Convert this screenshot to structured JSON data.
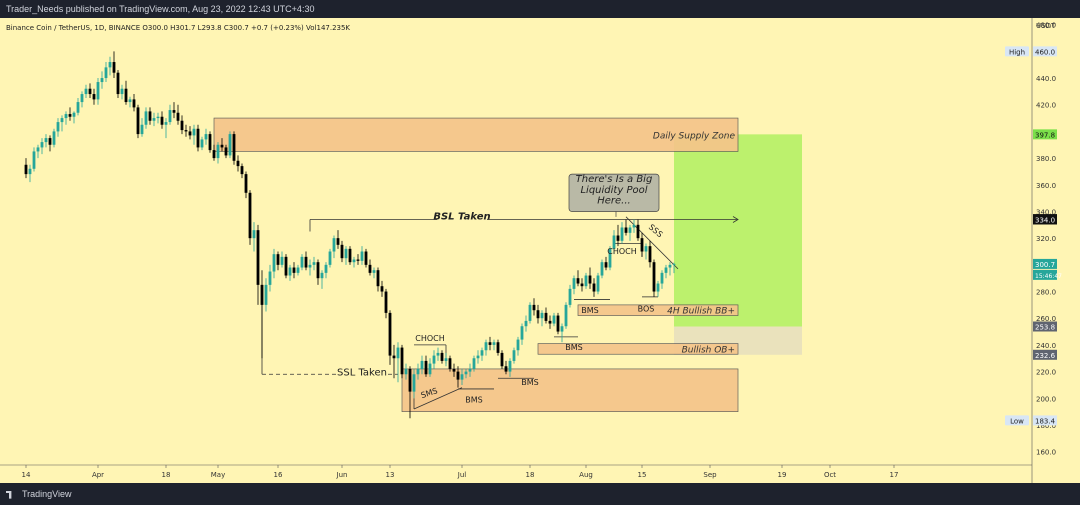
{
  "header": {
    "published_by": "Trader_Needs published on TradingView.com, Aug 23, 2022 12:43 UTC+4:30"
  },
  "footer": {
    "brand": "TradingView"
  },
  "chart_data": {
    "type": "candlestick",
    "symbol_line": "Binance Coin / TetherUS, 1D, BINANCE  O300.0  H301.7  L293.8  C300.7  +0.7 (+0.23%)  Vol147.235K",
    "currency": "USDT",
    "colors": {
      "background": "#fff5b4",
      "up": "#26a69a",
      "down": "#000000",
      "zone": "#f5c58a",
      "target": "#b0f060",
      "stop": "#e8e0bc"
    },
    "y_axis": {
      "ylim": [
        150,
        485
      ],
      "ticks": [
        "480.0",
        "460.0",
        "440.0",
        "420.0",
        "400.0",
        "380.0",
        "360.0",
        "340.0",
        "320.0",
        "300.0",
        "280.0",
        "260.0",
        "240.0",
        "220.0",
        "200.0",
        "180.0",
        "160.0"
      ]
    },
    "x_axis": {
      "ticks": [
        {
          "label": "14",
          "date": "2022-03-14"
        },
        {
          "label": "Apr",
          "date": "2022-04-01"
        },
        {
          "label": "18",
          "date": "2022-04-18"
        },
        {
          "label": "May",
          "date": "2022-05-01"
        },
        {
          "label": "16",
          "date": "2022-05-16"
        },
        {
          "label": "Jun",
          "date": "2022-06-01"
        },
        {
          "label": "13",
          "date": "2022-06-13"
        },
        {
          "label": "Jul",
          "date": "2022-07-01"
        },
        {
          "label": "18",
          "date": "2022-07-18"
        },
        {
          "label": "Aug",
          "date": "2022-08-01"
        },
        {
          "label": "15",
          "date": "2022-08-15"
        },
        {
          "label": "Sep",
          "date": "2022-09-01"
        },
        {
          "label": "19",
          "date": "2022-09-19"
        },
        {
          "label": "Oct",
          "date": "2022-10-01"
        },
        {
          "label": "17",
          "date": "2022-10-17"
        }
      ]
    },
    "price_labels": [
      {
        "text": "High",
        "value": "460.0",
        "price": 460.0,
        "style": "high"
      },
      {
        "text": "",
        "value": "397.8",
        "price": 397.8,
        "style": "green"
      },
      {
        "text": "",
        "value": "334.3",
        "price": 334.3,
        "style": "dark"
      },
      {
        "text": "",
        "value": "334.0",
        "price": 334.0,
        "style": "dark"
      },
      {
        "text": "",
        "value": "300.7",
        "price": 300.7,
        "style": "up"
      },
      {
        "text": "",
        "value": "15:46:47",
        "price": 292.5,
        "style": "up"
      },
      {
        "text": "",
        "value": "253.8",
        "price": 253.8,
        "style": "grey"
      },
      {
        "text": "",
        "value": "232.6",
        "price": 232.6,
        "style": "grey"
      },
      {
        "text": "Low",
        "value": "183.4",
        "price": 183.4,
        "style": "low"
      }
    ],
    "zones": [
      {
        "label": "Daily Supply Zone",
        "from": "2022-04-30",
        "to": "2022-09-08",
        "low": 385,
        "high": 410
      },
      {
        "label": "4H Bullish BB+",
        "from": "2022-07-30",
        "to": "2022-09-08",
        "low": 262,
        "high": 270
      },
      {
        "label": "Bullish OB+",
        "from": "2022-07-20",
        "to": "2022-09-08",
        "low": 233,
        "high": 241
      },
      {
        "label": "",
        "from": "2022-06-16",
        "to": "2022-09-08",
        "low": 190,
        "high": 222
      }
    ],
    "position": {
      "from": "2022-08-23",
      "to": "2022-09-24",
      "entry": 253.8,
      "target": 397.8,
      "stop": 232.6
    },
    "annotations": [
      {
        "text": "BSL Taken",
        "date": "2022-07-01",
        "price": 334
      },
      {
        "text": "SSL Taken",
        "date": "2022-06-06",
        "price": 217
      },
      {
        "text": "CHOCH",
        "date": "2022-06-23",
        "price": 243
      },
      {
        "text": "CHOCH",
        "date": "2022-08-10",
        "price": 308
      },
      {
        "text": "SMS",
        "date": "2022-06-23",
        "price": 202
      },
      {
        "text": "BMS",
        "date": "2022-07-04",
        "price": 197
      },
      {
        "text": "BMS",
        "date": "2022-07-18",
        "price": 210
      },
      {
        "text": "BMS",
        "date": "2022-07-29",
        "price": 236
      },
      {
        "text": "BMS",
        "date": "2022-08-02",
        "price": 264
      },
      {
        "text": "BOS",
        "date": "2022-08-16",
        "price": 265
      },
      {
        "text": "SSS",
        "date": "2022-08-18",
        "price": 324
      },
      {
        "text": "There's Is a Big",
        "date": "2022-08-08",
        "price": 362
      },
      {
        "text": "Liquidity Pool",
        "date": "2022-08-08",
        "price": 354
      },
      {
        "text": "Here...",
        "date": "2022-08-08",
        "price": 346
      }
    ],
    "ohlc": [
      [
        "2022-03-14",
        375,
        380,
        365,
        368
      ],
      [
        "2022-03-15",
        368,
        375,
        362,
        372
      ],
      [
        "2022-03-16",
        372,
        388,
        370,
        385
      ],
      [
        "2022-03-17",
        385,
        390,
        380,
        388
      ],
      [
        "2022-03-18",
        388,
        395,
        383,
        392
      ],
      [
        "2022-03-19",
        392,
        398,
        388,
        395
      ],
      [
        "2022-03-20",
        395,
        397,
        385,
        390
      ],
      [
        "2022-03-21",
        390,
        402,
        388,
        400
      ],
      [
        "2022-03-22",
        400,
        410,
        396,
        407
      ],
      [
        "2022-03-23",
        407,
        412,
        400,
        410
      ],
      [
        "2022-03-24",
        410,
        415,
        405,
        413
      ],
      [
        "2022-03-25",
        413,
        418,
        408,
        411
      ],
      [
        "2022-03-26",
        411,
        415,
        406,
        414
      ],
      [
        "2022-03-27",
        414,
        425,
        412,
        422
      ],
      [
        "2022-03-28",
        422,
        430,
        418,
        428
      ],
      [
        "2022-03-29",
        428,
        435,
        425,
        432
      ],
      [
        "2022-03-30",
        432,
        436,
        425,
        428
      ],
      [
        "2022-03-31",
        428,
        432,
        420,
        424
      ],
      [
        "2022-04-01",
        424,
        440,
        420,
        437
      ],
      [
        "2022-04-02",
        437,
        445,
        432,
        440
      ],
      [
        "2022-04-03",
        440,
        452,
        437,
        448
      ],
      [
        "2022-04-04",
        448,
        456,
        442,
        452
      ],
      [
        "2022-04-05",
        452,
        460,
        440,
        444
      ],
      [
        "2022-04-06",
        444,
        446,
        425,
        428
      ],
      [
        "2022-04-07",
        428,
        435,
        424,
        432
      ],
      [
        "2022-04-08",
        432,
        438,
        420,
        422
      ],
      [
        "2022-04-09",
        422,
        426,
        418,
        424
      ],
      [
        "2022-04-10",
        424,
        428,
        415,
        418
      ],
      [
        "2022-04-11",
        418,
        420,
        395,
        398
      ],
      [
        "2022-04-12",
        398,
        410,
        396,
        405
      ],
      [
        "2022-04-13",
        405,
        418,
        402,
        415
      ],
      [
        "2022-04-14",
        415,
        418,
        405,
        408
      ],
      [
        "2022-04-15",
        408,
        414,
        404,
        410
      ],
      [
        "2022-04-16",
        410,
        414,
        406,
        411
      ],
      [
        "2022-04-17",
        411,
        415,
        402,
        405
      ],
      [
        "2022-04-18",
        405,
        410,
        395,
        407
      ],
      [
        "2022-04-19",
        407,
        420,
        405,
        416
      ],
      [
        "2022-04-20",
        416,
        422,
        410,
        414
      ],
      [
        "2022-04-21",
        414,
        420,
        405,
        408
      ],
      [
        "2022-04-22",
        408,
        412,
        398,
        401
      ],
      [
        "2022-04-23",
        401,
        405,
        396,
        400
      ],
      [
        "2022-04-24",
        400,
        404,
        394,
        397
      ],
      [
        "2022-04-25",
        397,
        405,
        390,
        402
      ],
      [
        "2022-04-26",
        402,
        405,
        385,
        388
      ],
      [
        "2022-04-27",
        388,
        396,
        386,
        394
      ],
      [
        "2022-04-28",
        394,
        402,
        390,
        398
      ],
      [
        "2022-04-29",
        398,
        400,
        384,
        386
      ],
      [
        "2022-04-30",
        386,
        390,
        378,
        380
      ],
      [
        "2022-05-01",
        380,
        392,
        376,
        390
      ],
      [
        "2022-05-02",
        390,
        395,
        385,
        388
      ],
      [
        "2022-05-03",
        388,
        390,
        380,
        382
      ],
      [
        "2022-05-04",
        382,
        400,
        380,
        398
      ],
      [
        "2022-05-05",
        398,
        400,
        375,
        378
      ],
      [
        "2022-05-06",
        378,
        382,
        370,
        374
      ],
      [
        "2022-05-07",
        374,
        376,
        365,
        368
      ],
      [
        "2022-05-08",
        368,
        370,
        350,
        354
      ],
      [
        "2022-05-09",
        354,
        356,
        315,
        320
      ],
      [
        "2022-05-10",
        320,
        332,
        310,
        326
      ],
      [
        "2022-05-11",
        326,
        330,
        270,
        285
      ],
      [
        "2022-05-12",
        285,
        296,
        230,
        270
      ],
      [
        "2022-05-13",
        270,
        290,
        265,
        285
      ],
      [
        "2022-05-14",
        285,
        300,
        280,
        295
      ],
      [
        "2022-05-15",
        295,
        312,
        290,
        308
      ],
      [
        "2022-05-16",
        308,
        310,
        296,
        300
      ],
      [
        "2022-05-17",
        300,
        310,
        298,
        306
      ],
      [
        "2022-05-18",
        306,
        308,
        290,
        292
      ],
      [
        "2022-05-19",
        292,
        300,
        288,
        298
      ],
      [
        "2022-05-20",
        298,
        302,
        290,
        294
      ],
      [
        "2022-05-21",
        294,
        300,
        292,
        298
      ],
      [
        "2022-05-22",
        298,
        308,
        296,
        306
      ],
      [
        "2022-05-23",
        306,
        310,
        296,
        298
      ],
      [
        "2022-05-24",
        298,
        304,
        292,
        300
      ],
      [
        "2022-05-25",
        300,
        306,
        296,
        302
      ],
      [
        "2022-05-26",
        302,
        304,
        285,
        290
      ],
      [
        "2022-05-27",
        290,
        296,
        282,
        294
      ],
      [
        "2022-05-28",
        294,
        302,
        290,
        300
      ],
      [
        "2022-05-29",
        300,
        312,
        298,
        310
      ],
      [
        "2022-05-30",
        310,
        322,
        305,
        320
      ],
      [
        "2022-05-31",
        320,
        326,
        312,
        315
      ],
      [
        "2022-06-01",
        315,
        318,
        302,
        305
      ],
      [
        "2022-06-02",
        305,
        314,
        300,
        312
      ],
      [
        "2022-06-03",
        312,
        314,
        300,
        302
      ],
      [
        "2022-06-04",
        302,
        306,
        298,
        304
      ],
      [
        "2022-06-05",
        304,
        308,
        300,
        303
      ],
      [
        "2022-06-06",
        303,
        314,
        300,
        310
      ],
      [
        "2022-06-07",
        310,
        312,
        298,
        300
      ],
      [
        "2022-06-08",
        300,
        304,
        292,
        294
      ],
      [
        "2022-06-09",
        294,
        298,
        290,
        296
      ],
      [
        "2022-06-10",
        296,
        298,
        280,
        284
      ],
      [
        "2022-06-11",
        284,
        288,
        276,
        280
      ],
      [
        "2022-06-12",
        280,
        282,
        260,
        264
      ],
      [
        "2022-06-13",
        264,
        266,
        225,
        232
      ],
      [
        "2022-06-14",
        232,
        240,
        215,
        230
      ],
      [
        "2022-06-15",
        230,
        242,
        212,
        238
      ],
      [
        "2022-06-16",
        238,
        240,
        215,
        218
      ],
      [
        "2022-06-17",
        218,
        226,
        214,
        222
      ],
      [
        "2022-06-18",
        222,
        224,
        185,
        205
      ],
      [
        "2022-06-19",
        205,
        222,
        200,
        218
      ],
      [
        "2022-06-20",
        218,
        226,
        214,
        222
      ],
      [
        "2022-06-21",
        222,
        232,
        218,
        228
      ],
      [
        "2022-06-22",
        228,
        232,
        216,
        218
      ],
      [
        "2022-06-23",
        218,
        230,
        216,
        226
      ],
      [
        "2022-06-24",
        226,
        236,
        222,
        232
      ],
      [
        "2022-06-25",
        232,
        238,
        228,
        234
      ],
      [
        "2022-06-26",
        234,
        236,
        226,
        228
      ],
      [
        "2022-06-27",
        228,
        234,
        224,
        230
      ],
      [
        "2022-06-28",
        230,
        232,
        220,
        222
      ],
      [
        "2022-06-29",
        222,
        226,
        216,
        220
      ],
      [
        "2022-06-30",
        220,
        224,
        208,
        214
      ],
      [
        "2022-07-01",
        214,
        222,
        210,
        218
      ],
      [
        "2022-07-02",
        218,
        222,
        215,
        220
      ],
      [
        "2022-07-03",
        220,
        226,
        216,
        222
      ],
      [
        "2022-07-04",
        222,
        232,
        220,
        230
      ],
      [
        "2022-07-05",
        230,
        236,
        226,
        232
      ],
      [
        "2022-07-06",
        232,
        238,
        228,
        236
      ],
      [
        "2022-07-07",
        236,
        244,
        232,
        242
      ],
      [
        "2022-07-08",
        242,
        246,
        236,
        240
      ],
      [
        "2022-07-09",
        240,
        244,
        236,
        242
      ],
      [
        "2022-07-10",
        242,
        244,
        232,
        234
      ],
      [
        "2022-07-11",
        234,
        236,
        222,
        224
      ],
      [
        "2022-07-12",
        224,
        228,
        218,
        220
      ],
      [
        "2022-07-13",
        220,
        230,
        216,
        228
      ],
      [
        "2022-07-14",
        228,
        238,
        226,
        236
      ],
      [
        "2022-07-15",
        236,
        246,
        232,
        244
      ],
      [
        "2022-07-16",
        244,
        256,
        240,
        254
      ],
      [
        "2022-07-17",
        254,
        262,
        250,
        258
      ],
      [
        "2022-07-18",
        258,
        272,
        256,
        270
      ],
      [
        "2022-07-19",
        270,
        275,
        262,
        266
      ],
      [
        "2022-07-20",
        266,
        270,
        256,
        260
      ],
      [
        "2022-07-21",
        260,
        266,
        254,
        264
      ],
      [
        "2022-07-22",
        264,
        268,
        256,
        258
      ],
      [
        "2022-07-23",
        258,
        262,
        252,
        256
      ],
      [
        "2022-07-24",
        256,
        264,
        254,
        262
      ],
      [
        "2022-07-25",
        262,
        264,
        248,
        250
      ],
      [
        "2022-07-26",
        250,
        256,
        242,
        254
      ],
      [
        "2022-07-27",
        254,
        272,
        252,
        270
      ],
      [
        "2022-07-28",
        270,
        285,
        268,
        282
      ],
      [
        "2022-07-29",
        282,
        292,
        278,
        290
      ],
      [
        "2022-07-30",
        290,
        296,
        284,
        286
      ],
      [
        "2022-07-31",
        286,
        290,
        280,
        284
      ],
      [
        "2022-08-01",
        284,
        294,
        282,
        292
      ],
      [
        "2022-08-02",
        292,
        298,
        282,
        286
      ],
      [
        "2022-08-03",
        286,
        290,
        276,
        280
      ],
      [
        "2022-08-04",
        280,
        294,
        278,
        292
      ],
      [
        "2022-08-05",
        292,
        304,
        290,
        302
      ],
      [
        "2022-08-06",
        302,
        306,
        296,
        298
      ],
      [
        "2022-08-07",
        298,
        314,
        296,
        312
      ],
      [
        "2022-08-08",
        312,
        326,
        308,
        322
      ],
      [
        "2022-08-09",
        322,
        330,
        314,
        318
      ],
      [
        "2022-08-10",
        318,
        332,
        316,
        328
      ],
      [
        "2022-08-11",
        328,
        334,
        322,
        324
      ],
      [
        "2022-08-12",
        324,
        330,
        318,
        328
      ],
      [
        "2022-08-13",
        328,
        334,
        324,
        330
      ],
      [
        "2022-08-14",
        330,
        334,
        318,
        320
      ],
      [
        "2022-08-15",
        320,
        324,
        306,
        310
      ],
      [
        "2022-08-16",
        310,
        316,
        304,
        314
      ],
      [
        "2022-08-17",
        314,
        318,
        298,
        302
      ],
      [
        "2022-08-18",
        302,
        304,
        276,
        280
      ],
      [
        "2022-08-19",
        280,
        288,
        276,
        286
      ],
      [
        "2022-08-20",
        286,
        296,
        282,
        294
      ],
      [
        "2022-08-21",
        294,
        300,
        290,
        298
      ],
      [
        "2022-08-22",
        298,
        302,
        292,
        300
      ],
      [
        "2022-08-23",
        300,
        301.7,
        293.8,
        300.7
      ]
    ]
  }
}
